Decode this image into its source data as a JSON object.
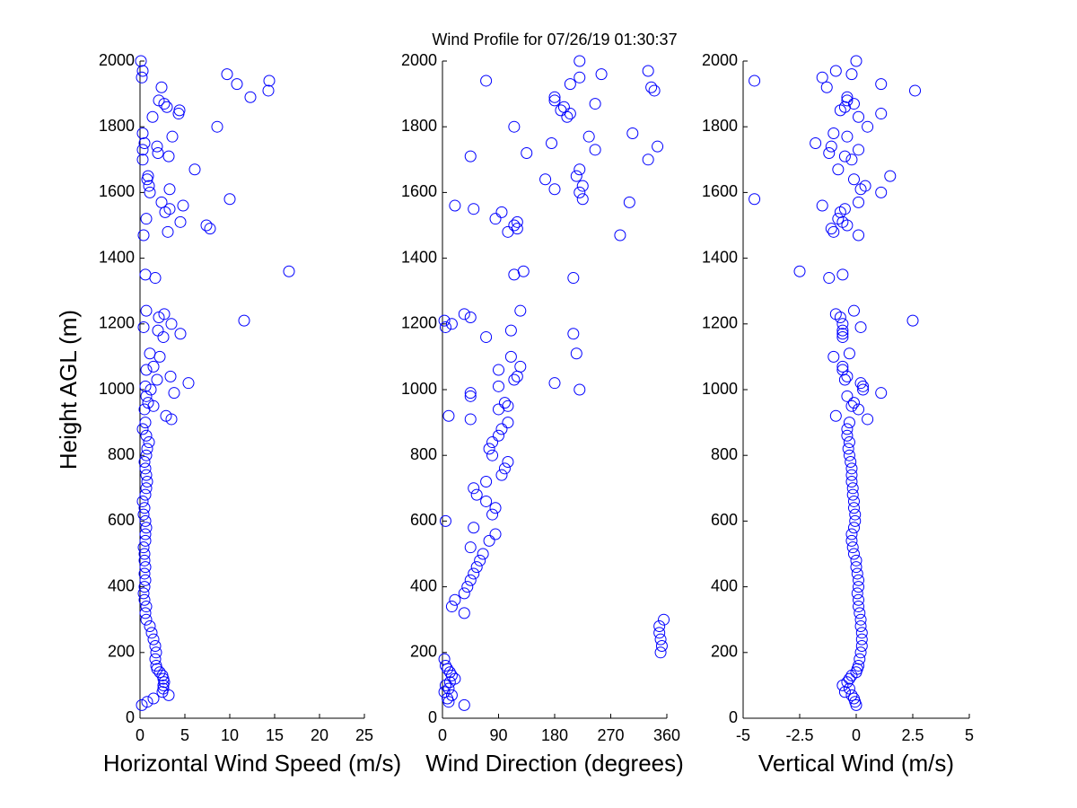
{
  "title": "Wind Profile for  07/26/19 01:30:37",
  "chart_data": [
    {
      "type": "scatter",
      "x_label": "Horizontal Wind Speed (m/s)",
      "y_label": "Height AGL (m)",
      "color": "#0000ff",
      "xlim": [
        0,
        25
      ],
      "xticks": [
        0,
        5,
        10,
        15,
        20,
        25
      ],
      "ylim": [
        0,
        2000
      ],
      "yticks": [
        0,
        200,
        400,
        600,
        800,
        1000,
        1200,
        1400,
        1600,
        1800,
        2000
      ],
      "x": [
        0.2,
        0.8,
        1.5,
        3.2,
        2.5,
        2.6,
        2.6,
        2.7,
        2.6,
        2.5,
        2.2,
        1.9,
        1.8,
        1.7,
        1.8,
        1.7,
        1.5,
        1.3,
        1.1,
        0.7,
        0.6,
        0.7,
        0.5,
        0.4,
        0.5,
        0.6,
        0.5,
        0.6,
        0.5,
        0.5,
        0.4,
        0.6,
        0.6,
        0.7,
        0.6,
        0.4,
        0.5,
        0.3,
        0.6,
        0.7,
        0.8,
        0.7,
        0.6,
        0.5,
        0.7,
        0.8,
        1.0,
        0.7,
        0.3,
        0.6,
        3.5,
        2.9,
        0.5,
        1.5,
        0.9,
        0.7,
        3.8,
        1.2,
        0.6,
        5.4,
        1.9,
        3.4,
        0.7,
        1.5,
        2.2,
        1.1,
        2.6,
        4.5,
        2.0,
        0.4,
        3.5,
        11.6,
        2.1,
        2.7,
        0.7,
        1.7,
        0.6,
        16.6,
        0.4,
        3.1,
        7.8,
        7.4,
        4.5,
        0.7,
        2.8,
        3.3,
        4.8,
        2.4,
        10.0,
        1.1,
        3.3,
        1.0,
        0.8,
        0.9,
        6.1,
        0.3,
        3.2,
        2.0,
        0.3,
        1.9,
        0.5,
        3.6,
        0.3,
        8.6,
        1.4,
        4.3,
        4.4,
        3.0,
        2.7,
        2.1,
        12.3,
        14.3,
        2.4,
        10.8,
        14.4,
        0.2,
        9.7,
        0.3,
        0.1
      ],
      "y": [
        40,
        50,
        60,
        70,
        80,
        90,
        100,
        110,
        120,
        130,
        140,
        150,
        160,
        180,
        200,
        220,
        240,
        260,
        280,
        300,
        320,
        340,
        360,
        380,
        400,
        420,
        440,
        460,
        480,
        500,
        520,
        540,
        560,
        580,
        600,
        620,
        640,
        660,
        680,
        700,
        720,
        740,
        760,
        780,
        800,
        820,
        840,
        860,
        880,
        900,
        910,
        920,
        940,
        950,
        960,
        980,
        990,
        1000,
        1010,
        1020,
        1030,
        1040,
        1060,
        1070,
        1100,
        1110,
        1160,
        1170,
        1180,
        1190,
        1200,
        1210,
        1220,
        1230,
        1240,
        1340,
        1350,
        1360,
        1470,
        1480,
        1490,
        1500,
        1510,
        1520,
        1540,
        1550,
        1560,
        1570,
        1580,
        1600,
        1610,
        1620,
        1640,
        1650,
        1670,
        1700,
        1710,
        1720,
        1730,
        1740,
        1750,
        1770,
        1780,
        1800,
        1830,
        1840,
        1850,
        1860,
        1870,
        1880,
        1890,
        1910,
        1920,
        1930,
        1940,
        1950,
        1960,
        1970,
        2000
      ]
    },
    {
      "type": "scatter",
      "x_label": "Wind Direction (degrees)",
      "color": "#0000ff",
      "xlim": [
        0,
        360
      ],
      "xticks": [
        0,
        90,
        180,
        270,
        360
      ],
      "ylim": [
        0,
        2000
      ],
      "yticks": [
        0,
        200,
        400,
        600,
        800,
        1000,
        1200,
        1400,
        1600,
        1800,
        2000
      ],
      "x": [
        35,
        10,
        8,
        15,
        3,
        10,
        5,
        12,
        20,
        15,
        12,
        8,
        5,
        3,
        350,
        352,
        350,
        348,
        348,
        355,
        35,
        15,
        20,
        35,
        40,
        45,
        50,
        55,
        60,
        65,
        45,
        75,
        85,
        50,
        5,
        80,
        85,
        70,
        55,
        50,
        70,
        95,
        100,
        105,
        80,
        75,
        80,
        90,
        95,
        105,
        45,
        10,
        90,
        105,
        100,
        45,
        45,
        220,
        90,
        180,
        115,
        120,
        90,
        125,
        110,
        215,
        70,
        210,
        110,
        5,
        15,
        3,
        45,
        35,
        125,
        210,
        115,
        130,
        285,
        105,
        120,
        115,
        120,
        85,
        95,
        50,
        20,
        300,
        225,
        220,
        180,
        225,
        165,
        215,
        220,
        330,
        45,
        135,
        245,
        345,
        175,
        235,
        305,
        115,
        200,
        205,
        190,
        195,
        245,
        180,
        180,
        340,
        335,
        205,
        70,
        220,
        255,
        330,
        220
      ],
      "y": [
        40,
        50,
        60,
        70,
        80,
        90,
        100,
        110,
        120,
        130,
        140,
        150,
        160,
        180,
        200,
        220,
        240,
        260,
        280,
        300,
        320,
        340,
        360,
        380,
        400,
        420,
        440,
        460,
        480,
        500,
        520,
        540,
        560,
        580,
        600,
        620,
        640,
        660,
        680,
        700,
        720,
        740,
        760,
        780,
        800,
        820,
        840,
        860,
        880,
        900,
        910,
        920,
        940,
        950,
        960,
        980,
        990,
        1000,
        1010,
        1020,
        1030,
        1040,
        1060,
        1070,
        1100,
        1110,
        1160,
        1170,
        1180,
        1190,
        1200,
        1210,
        1220,
        1230,
        1240,
        1340,
        1350,
        1360,
        1470,
        1480,
        1490,
        1500,
        1510,
        1520,
        1540,
        1550,
        1560,
        1570,
        1580,
        1600,
        1610,
        1620,
        1640,
        1650,
        1670,
        1700,
        1710,
        1720,
        1730,
        1740,
        1750,
        1770,
        1780,
        1800,
        1830,
        1840,
        1850,
        1860,
        1870,
        1880,
        1890,
        1910,
        1920,
        1930,
        1940,
        1950,
        1960,
        1970,
        2000
      ]
    },
    {
      "type": "scatter",
      "x_label": "Vertical Wind (m/s)",
      "color": "#0000ff",
      "xlim": [
        -5,
        5
      ],
      "xticks": [
        -5,
        -2.5,
        0,
        2.5,
        5
      ],
      "ylim": [
        0,
        2000
      ],
      "yticks": [
        0,
        200,
        400,
        600,
        800,
        1000,
        1200,
        1400,
        1600,
        1800,
        2000
      ],
      "x": [
        0,
        -0.05,
        -0.1,
        -0.2,
        -0.5,
        -0.3,
        -0.6,
        -0.4,
        -0.3,
        -0.2,
        0,
        0.05,
        0.1,
        0.15,
        0.2,
        0.25,
        0.25,
        0.25,
        0.2,
        0.2,
        0.15,
        0.1,
        0.1,
        0.05,
        0.1,
        0.1,
        0.05,
        0,
        0,
        -0.1,
        -0.15,
        -0.2,
        -0.2,
        -0.1,
        -0.05,
        -0.05,
        -0.1,
        -0.1,
        -0.15,
        -0.15,
        -0.2,
        -0.2,
        -0.2,
        -0.25,
        -0.3,
        -0.35,
        -0.3,
        -0.4,
        -0.4,
        -0.3,
        0.5,
        -0.9,
        0.1,
        -0.2,
        -0.1,
        -0.4,
        1.1,
        0.3,
        0.3,
        0.2,
        -0.5,
        -0.4,
        -0.6,
        -0.6,
        -1.0,
        -0.3,
        -0.6,
        -0.6,
        -0.6,
        0.2,
        -0.6,
        2.5,
        -0.7,
        -0.9,
        -0.1,
        -1.2,
        -0.6,
        -2.5,
        0.1,
        -1.0,
        -1.1,
        -0.4,
        -0.6,
        -0.8,
        -0.7,
        -0.5,
        -1.5,
        0.1,
        -4.5,
        1.1,
        0.2,
        0.4,
        -0.1,
        1.5,
        -0.8,
        -0.2,
        -0.5,
        -1.2,
        0.1,
        -1.1,
        -1.8,
        -0.4,
        -1.0,
        0.5,
        0.1,
        1.1,
        -0.7,
        -0.5,
        -0.1,
        -0.4,
        -0.4,
        2.6,
        -1.3,
        1.1,
        -4.5,
        -1.5,
        -0.2,
        -0.9,
        0
      ],
      "y": [
        40,
        50,
        60,
        70,
        80,
        90,
        100,
        110,
        120,
        130,
        140,
        150,
        160,
        180,
        200,
        220,
        240,
        260,
        280,
        300,
        320,
        340,
        360,
        380,
        400,
        420,
        440,
        460,
        480,
        500,
        520,
        540,
        560,
        580,
        600,
        620,
        640,
        660,
        680,
        700,
        720,
        740,
        760,
        780,
        800,
        820,
        840,
        860,
        880,
        900,
        910,
        920,
        940,
        950,
        960,
        980,
        990,
        1000,
        1010,
        1020,
        1030,
        1040,
        1060,
        1070,
        1100,
        1110,
        1160,
        1170,
        1180,
        1190,
        1200,
        1210,
        1220,
        1230,
        1240,
        1340,
        1350,
        1360,
        1470,
        1480,
        1490,
        1500,
        1510,
        1520,
        1540,
        1550,
        1560,
        1570,
        1580,
        1600,
        1610,
        1620,
        1640,
        1650,
        1670,
        1700,
        1710,
        1720,
        1730,
        1740,
        1750,
        1770,
        1780,
        1800,
        1830,
        1840,
        1850,
        1860,
        1870,
        1880,
        1890,
        1910,
        1920,
        1930,
        1940,
        1950,
        1960,
        1970,
        2000
      ]
    }
  ]
}
